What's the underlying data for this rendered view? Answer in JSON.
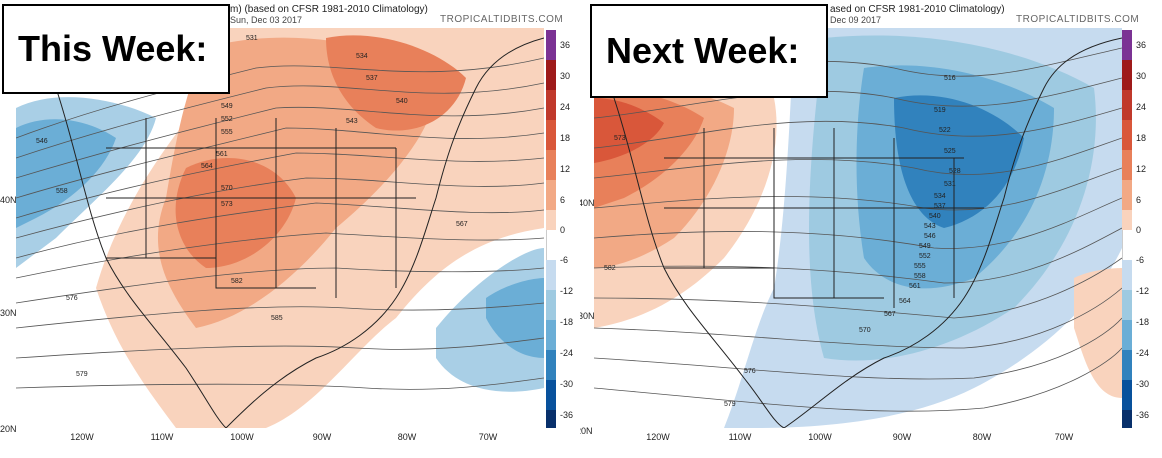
{
  "panels": {
    "left": {
      "box_label": "This Week:",
      "header": "m) (based on CFSR 1981-2010 Climatology)",
      "date": "Sun, Dec 03 2017",
      "brand": "TROPICALTIDBITS.COM",
      "contour_labels": [
        "531",
        "534",
        "537",
        "540",
        "543",
        "546",
        "549",
        "552",
        "555",
        "558",
        "561",
        "564",
        "567",
        "570",
        "573",
        "576",
        "579",
        "582",
        "585"
      ]
    },
    "right": {
      "box_label": "Next Week:",
      "header": "ased on CFSR 1981-2010 Climatology)",
      "date": "Dec 09 2017",
      "brand": "TROPICALTIDBITS.COM",
      "contour_labels": [
        "516",
        "519",
        "522",
        "525",
        "528",
        "531",
        "534",
        "537",
        "540",
        "543",
        "546",
        "549",
        "552",
        "555",
        "558",
        "561",
        "564",
        "567",
        "570",
        "573",
        "576",
        "579",
        "582"
      ]
    }
  },
  "colorbar": {
    "labels": [
      "36",
      "30",
      "24",
      "18",
      "12",
      "6",
      "0",
      "-6",
      "-12",
      "-18",
      "-24",
      "-30",
      "-36"
    ],
    "colors": [
      "#7b3294",
      "#9e1a1a",
      "#c0392b",
      "#d9573a",
      "#e8805a",
      "#f2a985",
      "#f9d3bd",
      "#ffffff",
      "#c6dbef",
      "#9ecae1",
      "#6baed6",
      "#3182bd",
      "#08519c",
      "#08306b"
    ]
  },
  "axes": {
    "lat_labels": [
      "40N",
      "30N",
      "20N"
    ],
    "lon_labels": [
      "120W",
      "110W",
      "100W",
      "90W",
      "80W",
      "70W"
    ]
  }
}
